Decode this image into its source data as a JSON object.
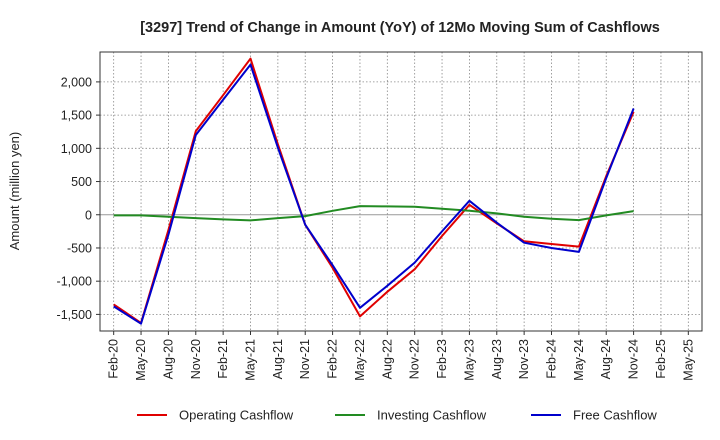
{
  "chart_data": {
    "type": "line",
    "title": "[3297]  Trend of Change in Amount (YoY) of 12Mo Moving Sum of Cashflows",
    "xlabel": "",
    "ylabel": "Amount (million yen)",
    "categories": [
      "Feb-20",
      "May-20",
      "Aug-20",
      "Nov-20",
      "Feb-21",
      "May-21",
      "Aug-21",
      "Nov-21",
      "Feb-22",
      "May-22",
      "Aug-22",
      "Nov-22",
      "Feb-23",
      "May-23",
      "Aug-23",
      "Nov-23",
      "Feb-24",
      "May-24",
      "Aug-24",
      "Nov-24",
      "Feb-25",
      "May-25"
    ],
    "ylim": [
      -1750,
      2450
    ],
    "yticks": [
      -1500,
      -1000,
      -500,
      0,
      500,
      1000,
      1500,
      2000
    ],
    "ytick_labels": [
      "-1,500",
      "-1,000",
      "-500",
      "0",
      "500",
      "1,000",
      "1,500",
      "2,000"
    ],
    "grid": true,
    "legend_position": "bottom",
    "series": [
      {
        "name": "Operating Cashflow",
        "color": "#e00000",
        "values": [
          -1350,
          -1630,
          -230,
          1260,
          1800,
          2350,
          1060,
          -150,
          -800,
          -1530,
          -1160,
          -820,
          -320,
          150,
          -130,
          -400,
          -440,
          -480,
          580,
          1550,
          null,
          null
        ]
      },
      {
        "name": "Investing Cashflow",
        "color": "#228b22",
        "values": [
          -10,
          -10,
          -30,
          -50,
          -70,
          -85,
          -50,
          -20,
          60,
          130,
          125,
          120,
          90,
          60,
          20,
          -30,
          -60,
          -80,
          -10,
          55,
          null,
          null
        ]
      },
      {
        "name": "Free Cashflow",
        "color": "#0000cc",
        "values": [
          -1380,
          -1640,
          -300,
          1200,
          1730,
          2260,
          1010,
          -150,
          -760,
          -1400,
          -1070,
          -720,
          -250,
          210,
          -120,
          -420,
          -500,
          -560,
          550,
          1600,
          null,
          null
        ]
      }
    ]
  }
}
